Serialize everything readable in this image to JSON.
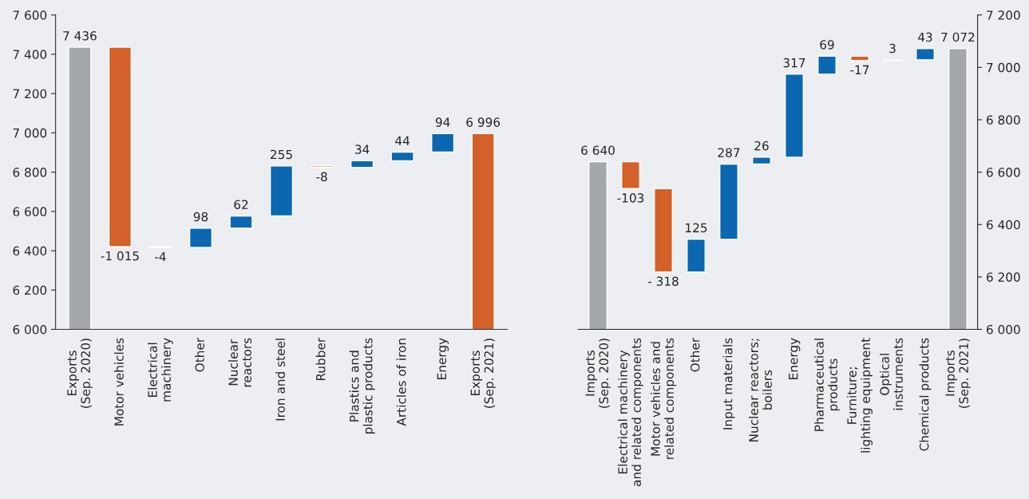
{
  "chart_data": [
    {
      "type": "bar",
      "categories": [
        "Exports\n(Sep. 2020)",
        "Motor vehicles",
        "Electrical\nmachinery",
        "Other",
        "Nuclear\nreactors",
        "Iron and steel",
        "Rubber",
        "Plastics and\nplastic products",
        "Articles of iron",
        "Energy",
        "Exports\n(Sep. 2021)"
      ],
      "values": [
        7436,
        -1015,
        -4,
        98,
        62,
        255,
        -8,
        34,
        44,
        94,
        6996
      ],
      "base": [
        0,
        7436,
        6421,
        6417,
        6515,
        6577,
        6832,
        6824,
        6858,
        6902,
        0
      ],
      "colors": [
        "#a5a8ab",
        "#d4612a",
        "#d4612a",
        "#0b68b0",
        "#0b68b0",
        "#0b68b0",
        "#d4612a",
        "#0b68b0",
        "#0b68b0",
        "#0b68b0",
        "#d4612a"
      ],
      "value_labels": [
        "7 436",
        "-1 015",
        "-4",
        "98",
        "62",
        "255",
        "-8",
        "34",
        "44",
        "94",
        "6 996"
      ],
      "ylim": [
        6000,
        7600
      ],
      "yticks": [
        {
          "value": 6000,
          "label": "6 000"
        },
        {
          "value": 6200,
          "label": "6 200"
        },
        {
          "value": 6400,
          "label": "6 400"
        },
        {
          "value": 6600,
          "label": "6 600"
        },
        {
          "value": 6800,
          "label": "6 800"
        },
        {
          "value": 7000,
          "label": "7 000"
        },
        {
          "value": 7200,
          "label": "7 200"
        },
        {
          "value": 7400,
          "label": "7 400"
        },
        {
          "value": 7600,
          "label": "7 600"
        }
      ]
    },
    {
      "type": "bar",
      "categories": [
        "Imports\n(Sep. 2020)",
        "Electrical machinery\nand related components",
        "Motor vehicles and\nrelated components",
        "Other",
        "Input materials",
        "Nuclear reactors;\nboilers",
        "Energy",
        "Pharmaceutical\nproducts",
        "Furniture;\nlighting equipment",
        "Optical\ninstruments",
        "Chemical products",
        "Imports\n(Sep. 2021)"
      ],
      "series": [
        {
          "axis": "y2",
          "values": [
            6640,
            -103,
            -318,
            125,
            287,
            26,
            317,
            69,
            -17,
            3,
            43,
            7072
          ],
          "base": [
            0,
            6640,
            6537,
            6219,
            6344,
            6631,
            6657,
            6974,
            7043,
            7026,
            7029,
            0
          ],
          "colors": [
            "#a5a8ab",
            "#d4612a",
            "#d4612a",
            "#0b68b0",
            "#0b68b0",
            "#0b68b0",
            "#0b68b0",
            "#0b68b0",
            "#d4612a",
            "#0b68b0",
            "#0b68b0",
            "#a5a8ab"
          ],
          "value_labels": [
            "6 640",
            "-103",
            "- 318",
            "125",
            "287",
            "26",
            "317",
            "69",
            "-17",
            "3",
            "43",
            "7 072"
          ]
        }
      ],
      "y2lim": [
        6000,
        7200
      ],
      "y2ticks": [
        {
          "value": 6000,
          "label": "6 000"
        },
        {
          "value": 6200,
          "label": "6 200"
        },
        {
          "value": 6400,
          "label": "6 400"
        },
        {
          "value": 6600,
          "label": "6 600"
        },
        {
          "value": 6800,
          "label": "6 800"
        },
        {
          "value": 7000,
          "label": "7 000"
        },
        {
          "value": 7200,
          "label": "7 200"
        }
      ]
    }
  ]
}
